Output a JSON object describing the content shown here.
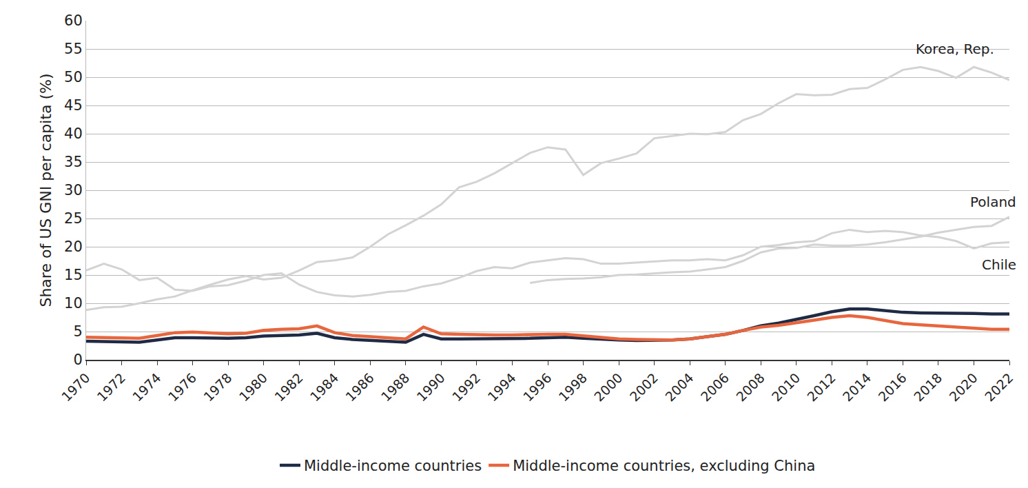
{
  "chart_data": {
    "type": "line",
    "y_label": "Share of US GNI per capita (%)",
    "x": [
      1970,
      1971,
      1972,
      1973,
      1974,
      1975,
      1976,
      1977,
      1978,
      1979,
      1980,
      1981,
      1982,
      1983,
      1984,
      1985,
      1986,
      1987,
      1988,
      1989,
      1990,
      1991,
      1992,
      1993,
      1994,
      1995,
      1996,
      1997,
      1998,
      1999,
      2000,
      2001,
      2002,
      2003,
      2004,
      2005,
      2006,
      2007,
      2008,
      2009,
      2010,
      2011,
      2012,
      2013,
      2014,
      2015,
      2016,
      2017,
      2018,
      2019,
      2020,
      2021,
      2022
    ],
    "xlim": [
      1970,
      2022
    ],
    "xticks": [
      1970,
      1972,
      1974,
      1976,
      1978,
      1980,
      1982,
      1984,
      1986,
      1988,
      1990,
      1992,
      1994,
      1996,
      1998,
      2000,
      2002,
      2004,
      2006,
      2008,
      2010,
      2012,
      2014,
      2016,
      2018,
      2020,
      2022
    ],
    "ylim": [
      0,
      60
    ],
    "yticks": [
      0,
      5,
      10,
      15,
      20,
      25,
      30,
      35,
      40,
      45,
      50,
      55,
      60
    ],
    "grid": "y",
    "legend": "bottom",
    "series": [
      {
        "name": "Middle-income countries",
        "color": "#1f2a44",
        "values": [
          3.3,
          3.2,
          3.1,
          3.1,
          3.5,
          3.9,
          3.9,
          3.8,
          3.8,
          3.9,
          4.2,
          4.3,
          4.4,
          4.7,
          3.9,
          3.6,
          3.4,
          3.2,
          3.1,
          4.5,
          3.7,
          3.7,
          3.7,
          3.7,
          3.8,
          3.8,
          3.9,
          4.0,
          3.8,
          3.6,
          3.5,
          3.4,
          3.4,
          3.5,
          3.7,
          4.1,
          4.5,
          5.2,
          6.0,
          6.5,
          7.1,
          7.8,
          8.5,
          9.0,
          9.0,
          8.7,
          8.4,
          8.3,
          8.3,
          8.3,
          8.2,
          8.1,
          8.1
        ]
      },
      {
        "name": "Middle-income countries, excluding China",
        "color": "#e8663d",
        "values": [
          4.0,
          3.9,
          3.8,
          3.8,
          4.3,
          4.8,
          4.9,
          4.7,
          4.6,
          4.7,
          5.2,
          5.4,
          5.5,
          6.0,
          4.8,
          4.3,
          4.1,
          3.9,
          3.7,
          5.8,
          4.6,
          4.5,
          4.4,
          4.4,
          4.4,
          4.5,
          4.5,
          4.5,
          4.2,
          3.9,
          3.7,
          3.6,
          3.5,
          3.5,
          3.7,
          4.1,
          4.5,
          5.2,
          5.8,
          6.1,
          6.5,
          7.0,
          7.5,
          7.8,
          7.5,
          6.9,
          6.4,
          6.2,
          6.0,
          5.9,
          5.6,
          5.4,
          5.4
        ]
      }
    ],
    "reference_series": [
      {
        "name": "Korea, Rep.",
        "color": "#d3d3d3",
        "values": [
          8.8,
          9.3,
          9.4,
          10,
          10.7,
          11.2,
          12.3,
          13.3,
          14.2,
          14.8,
          14.2,
          14.5,
          15.8,
          17.3,
          17.6,
          18.1,
          20,
          22.2,
          23.8,
          25.5,
          27.5,
          30.5,
          31.5,
          33,
          34.8,
          36.6,
          37.6,
          37.2,
          32.7,
          34.8,
          35.6,
          36.5,
          39.2,
          39.6,
          40,
          39.9,
          40.3,
          42.4,
          43.5,
          45.4,
          47,
          46.8,
          46.9,
          47.9,
          48.1,
          49.6,
          51.3,
          51.8,
          51.1,
          49.9,
          51.8,
          50.8,
          49.5
        ]
      },
      {
        "name": "Poland",
        "color": "#d3d3d3",
        "values": [
          null,
          null,
          null,
          null,
          null,
          null,
          null,
          null,
          null,
          null,
          null,
          null,
          null,
          null,
          null,
          null,
          null,
          null,
          null,
          null,
          null,
          null,
          null,
          null,
          null,
          13.6,
          14.1,
          14.3,
          14.4,
          14.6,
          15,
          15.1,
          15.3,
          15.5,
          15.6,
          16,
          16.4,
          17.5,
          19,
          19.7,
          19.8,
          20.4,
          20.2,
          20.2,
          20.4,
          20.8,
          21.3,
          21.8,
          22.5,
          23,
          23.5,
          23.7,
          25.3
        ]
      },
      {
        "name": "Chile",
        "color": "#d3d3d3",
        "values": [
          15.8,
          17,
          16,
          14.1,
          14.5,
          12.4,
          12.2,
          13,
          13.2,
          14,
          15,
          15.3,
          13.3,
          12,
          11.4,
          11.2,
          11.5,
          12,
          12.2,
          13,
          13.5,
          14.5,
          15.7,
          16.4,
          16.2,
          17.2,
          17.6,
          18,
          17.8,
          17,
          17,
          17.2,
          17.4,
          17.6,
          17.6,
          17.8,
          17.6,
          18.5,
          20,
          20.3,
          20.8,
          21,
          22.4,
          23,
          22.6,
          22.8,
          22.6,
          22,
          21.7,
          21,
          19.7,
          20.6,
          20.8
        ]
      }
    ]
  }
}
